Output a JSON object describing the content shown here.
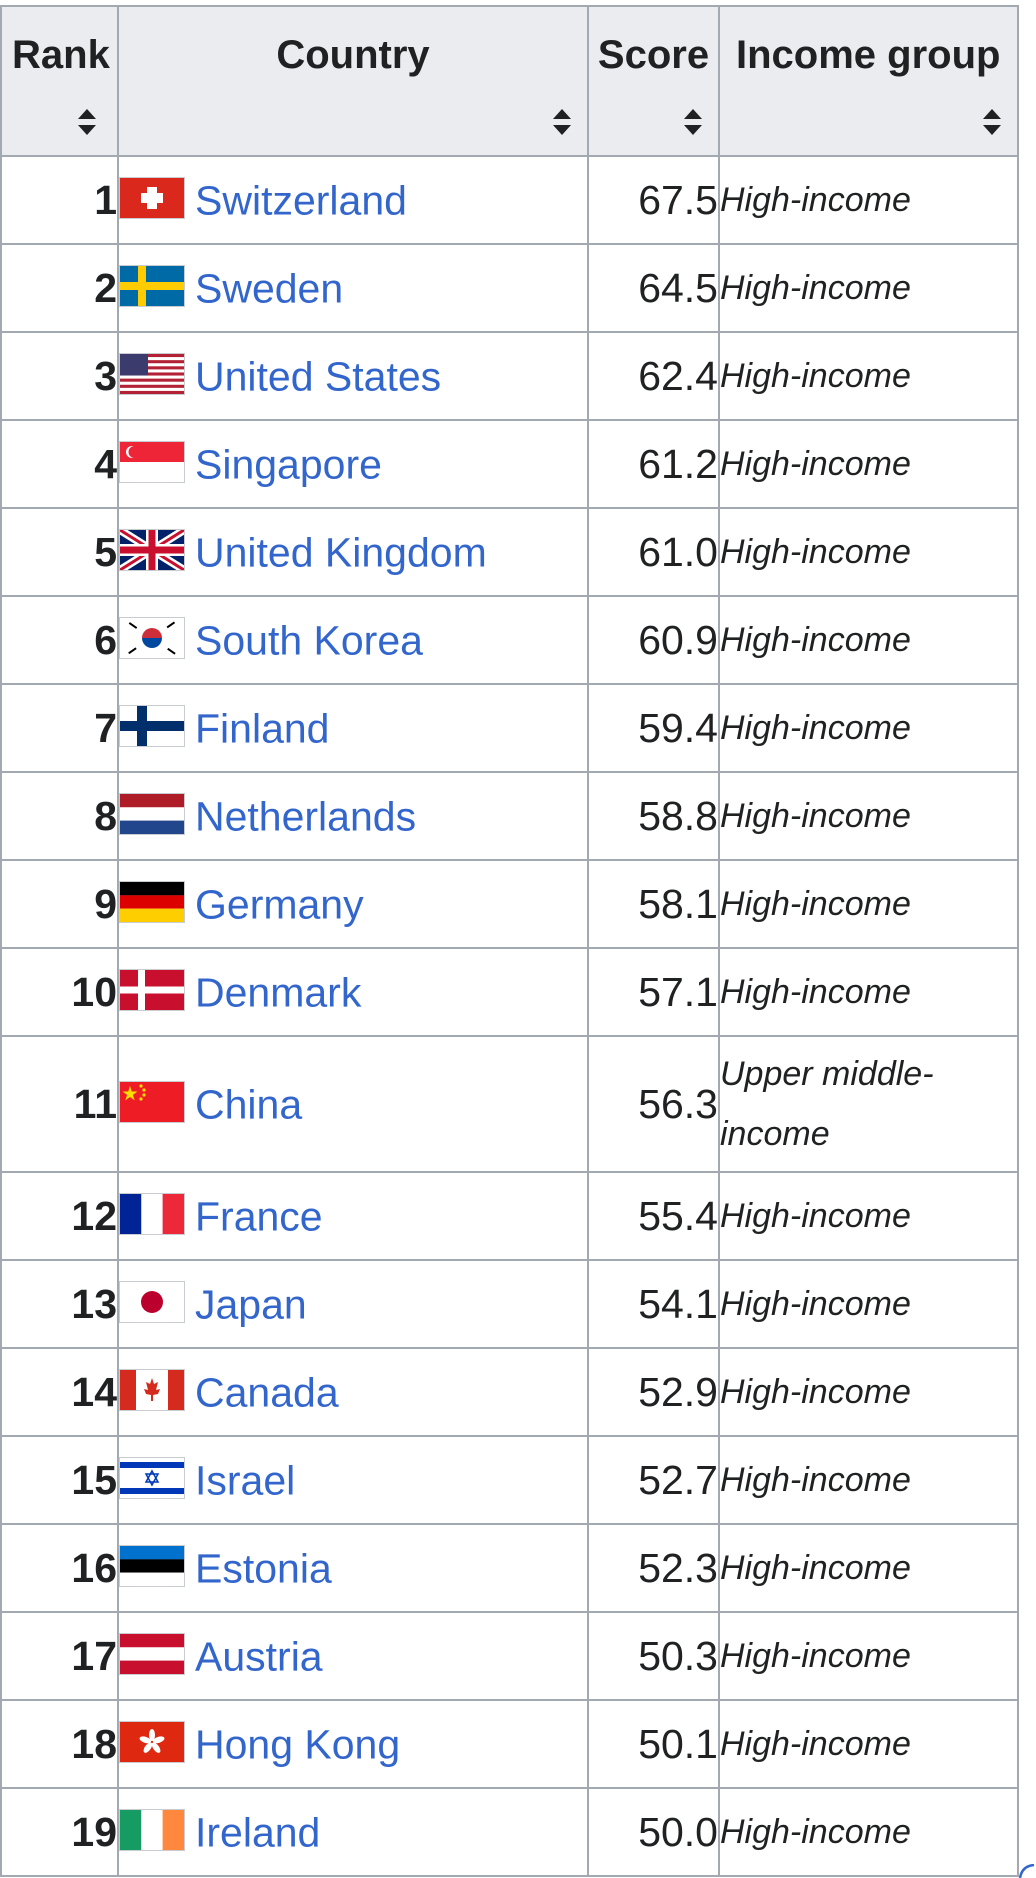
{
  "table": {
    "headers": {
      "rank": "Rank",
      "country": "Country",
      "score": "Score",
      "income": "Income group"
    },
    "rows": [
      {
        "rank": "1",
        "country": "Switzerland",
        "score": "67.5",
        "income": "High-income",
        "flag": "flag-switzerland"
      },
      {
        "rank": "2",
        "country": "Sweden",
        "score": "64.5",
        "income": "High-income",
        "flag": "flag-sweden"
      },
      {
        "rank": "3",
        "country": "United States",
        "score": "62.4",
        "income": "High-income",
        "flag": "flag-usa"
      },
      {
        "rank": "4",
        "country": "Singapore",
        "score": "61.2",
        "income": "High-income",
        "flag": "flag-singapore"
      },
      {
        "rank": "5",
        "country": "United Kingdom",
        "score": "61.0",
        "income": "High-income",
        "flag": "flag-uk"
      },
      {
        "rank": "6",
        "country": "South Korea",
        "score": "60.9",
        "income": "High-income",
        "flag": "flag-south-korea"
      },
      {
        "rank": "7",
        "country": "Finland",
        "score": "59.4",
        "income": "High-income",
        "flag": "flag-finland"
      },
      {
        "rank": "8",
        "country": "Netherlands",
        "score": "58.8",
        "income": "High-income",
        "flag": "flag-netherlands"
      },
      {
        "rank": "9",
        "country": "Germany",
        "score": "58.1",
        "income": "High-income",
        "flag": "flag-germany"
      },
      {
        "rank": "10",
        "country": "Denmark",
        "score": "57.1",
        "income": "High-income",
        "flag": "flag-denmark"
      },
      {
        "rank": "11",
        "country": "China",
        "score": "56.3",
        "income": "Upper middle-income",
        "flag": "flag-china"
      },
      {
        "rank": "12",
        "country": "France",
        "score": "55.4",
        "income": "High-income",
        "flag": "flag-france"
      },
      {
        "rank": "13",
        "country": "Japan",
        "score": "54.1",
        "income": "High-income",
        "flag": "flag-japan"
      },
      {
        "rank": "14",
        "country": "Canada",
        "score": "52.9",
        "income": "High-income",
        "flag": "flag-canada"
      },
      {
        "rank": "15",
        "country": "Israel",
        "score": "52.7",
        "income": "High-income",
        "flag": "flag-israel"
      },
      {
        "rank": "16",
        "country": "Estonia",
        "score": "52.3",
        "income": "High-income",
        "flag": "flag-estonia"
      },
      {
        "rank": "17",
        "country": "Austria",
        "score": "50.3",
        "income": "High-income",
        "flag": "flag-austria"
      },
      {
        "rank": "18",
        "country": "Hong Kong",
        "score": "50.1",
        "income": "High-income",
        "flag": "flag-hong-kong"
      },
      {
        "rank": "19",
        "country": "Ireland",
        "score": "50.0",
        "income": "High-income",
        "flag": "flag-ireland"
      }
    ]
  },
  "colors": {
    "link": "#3366cc",
    "border": "#a2a9b1",
    "header_bg": "#eaecf0"
  },
  "icons": {
    "sort": "sort-icon",
    "corner": "resize-corner-icon"
  }
}
